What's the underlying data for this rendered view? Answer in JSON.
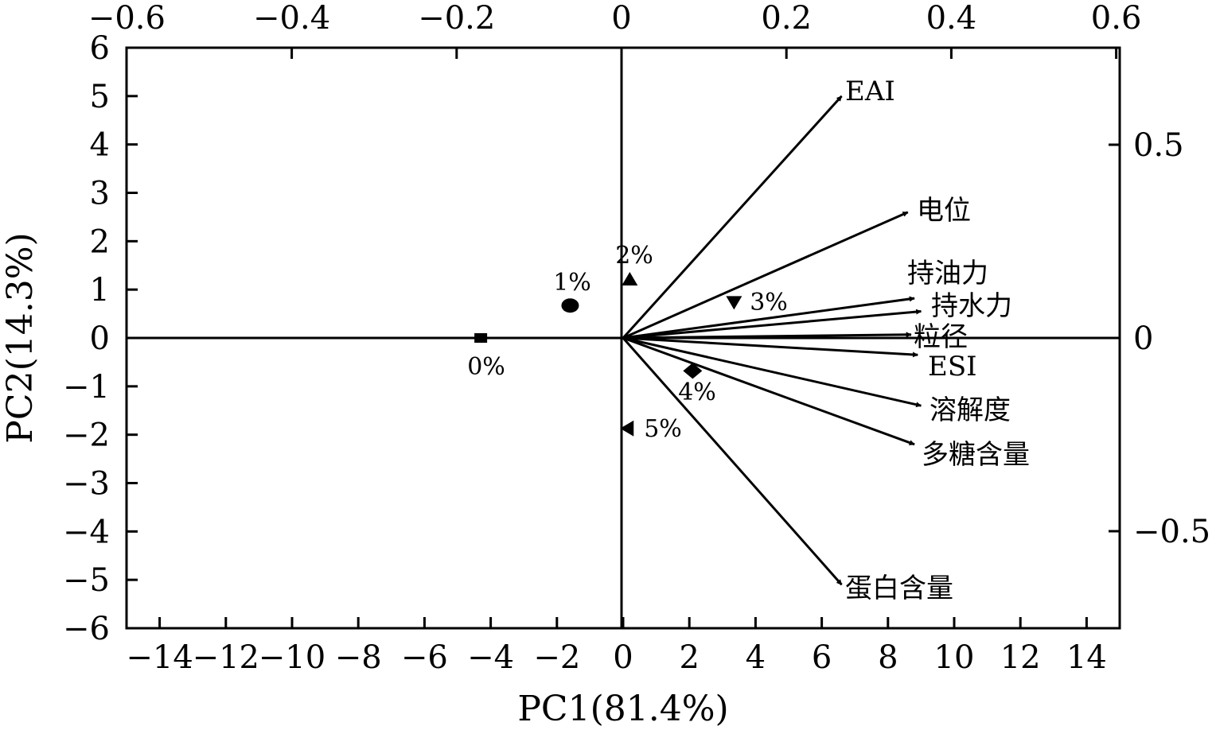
{
  "chart_data": {
    "type": "scatter",
    "subtype": "biplot",
    "title": "",
    "xlabel": "PC1(81.4%)",
    "ylabel": "PC2(14.3%)",
    "xlim": [
      -15,
      15
    ],
    "ylim": [
      -6,
      6
    ],
    "x_ticks": [
      "−14",
      "−12",
      "−10",
      "−8",
      "−6",
      "−4",
      "−2",
      "0",
      "2",
      "4",
      "6",
      "8",
      "10",
      "12",
      "14"
    ],
    "y_ticks": [
      "6",
      "5",
      "4",
      "3",
      "2",
      "1",
      "0",
      "−1",
      "−2",
      "−3",
      "−4",
      "−5",
      "−6"
    ],
    "top_ticks": [
      "−0.6",
      "−0.4",
      "−0.2",
      "0",
      "0.2",
      "0.4",
      "0.6"
    ],
    "right_ticks": [
      "0.5",
      "0",
      "−0.5"
    ],
    "grid": false,
    "series": [
      {
        "kind": "scores",
        "points": [
          {
            "label": "0%",
            "x": -4.3,
            "y": 0.0,
            "marker": "square"
          },
          {
            "label": "1%",
            "x": -1.6,
            "y": 0.67,
            "marker": "circle"
          },
          {
            "label": "2%",
            "x": 0.2,
            "y": 1.2,
            "marker": "triangle-up"
          },
          {
            "label": "3%",
            "x": 3.35,
            "y": 0.75,
            "marker": "triangle-down"
          },
          {
            "label": "4%",
            "x": 2.1,
            "y": -0.68,
            "marker": "diamond"
          },
          {
            "label": "5%",
            "x": 0.15,
            "y": -1.87,
            "marker": "triangle-left"
          }
        ]
      },
      {
        "kind": "loadings",
        "vectors": [
          {
            "label": "EAI",
            "x": 6.6,
            "y": 5.0
          },
          {
            "label": "电位",
            "x": 8.6,
            "y": 2.6
          },
          {
            "label": "持油力",
            "x": 8.8,
            "y": 0.82
          },
          {
            "label": "持水力",
            "x": 9.0,
            "y": 0.55
          },
          {
            "label": "粒径",
            "x": 8.7,
            "y": 0.07
          },
          {
            "label": "ESI",
            "x": 8.9,
            "y": -0.35
          },
          {
            "label": "溶解度",
            "x": 9.0,
            "y": -1.4
          },
          {
            "label": "多糖含量",
            "x": 8.8,
            "y": -2.2
          },
          {
            "label": "蛋白含量",
            "x": 6.6,
            "y": -5.1
          }
        ]
      }
    ]
  }
}
